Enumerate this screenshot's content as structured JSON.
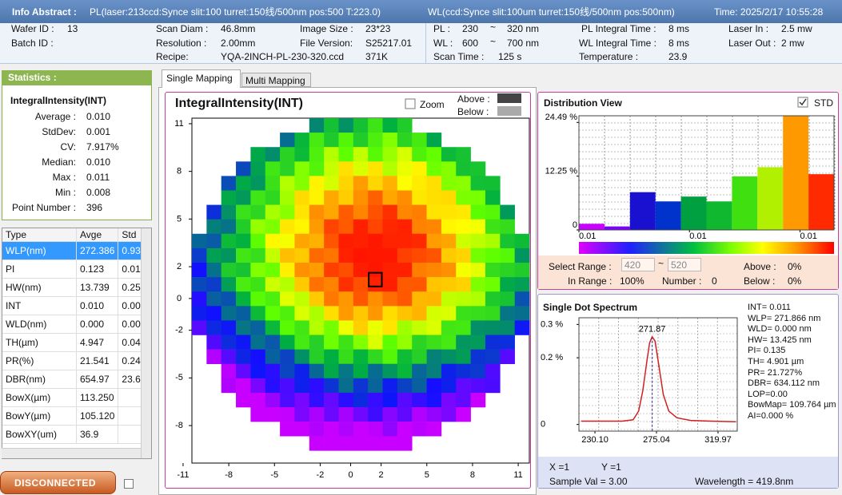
{
  "header": {
    "title": "Info Abstract :",
    "pl": "PL(laser:213ccd:Synce slit:100 turret:150线/500nm pos:500 T:223.0)",
    "wl": "WL(ccd:Synce slit:100um turret:150线/500nm pos:500nm)",
    "time": "Time: 2025/2/17 10:55:28"
  },
  "info": {
    "wafer_id_label": "Wafer ID :",
    "wafer_id": "13",
    "batch_id_label": "Batch ID :",
    "scan_diam_label": "Scan Diam :",
    "scan_diam": "46.8mm",
    "resolution_label": "Resolution :",
    "resolution": "2.00mm",
    "recipe_label": "Recipe:",
    "recipe": "YQA-2INCH-PL-230-320.ccd",
    "image_size_label": "Image Size :",
    "image_size": "23*23",
    "file_version_label": "File Version:",
    "file_version": "S25217.01",
    "file_size": "371K",
    "pl_label": "PL :",
    "pl_from": "230",
    "pl_tilde": "~",
    "pl_to": "320 nm",
    "wl_label": "WL :",
    "wl_from": "600",
    "wl_tilde": "~",
    "wl_to": "700 nm",
    "scan_time_label": "Scan Time :",
    "scan_time": "125 s",
    "pl_int_label": "PL Integral Time :",
    "pl_int": "8 ms",
    "wl_int_label": "WL Integral Time :",
    "wl_int": "8 ms",
    "temp_label": "Temperature :",
    "temp": "23.9",
    "laser_in_label": "Laser In :",
    "laser_in": "2.5 mw",
    "laser_out_label": "Laser Out :",
    "laser_out": "2 mw"
  },
  "statistics": {
    "title": "Statistics :",
    "metric": "IntegralIntensity(INT)",
    "rows": [
      {
        "label": "Average :",
        "value": "0.010"
      },
      {
        "label": "StdDev:",
        "value": "0.001"
      },
      {
        "label": "CV:",
        "value": "7.917%"
      },
      {
        "label": "Median:",
        "value": "0.010"
      },
      {
        "label": "Max :",
        "value": "0.011"
      },
      {
        "label": "Min :",
        "value": "0.008"
      },
      {
        "label": "Point Number :",
        "value": "396"
      }
    ]
  },
  "table": {
    "columns": [
      "Type",
      "Avge",
      "Std"
    ],
    "rows": [
      [
        "WLP(nm)",
        "272.386",
        "0.93"
      ],
      [
        "PI",
        "0.123",
        "0.01"
      ],
      [
        "HW(nm)",
        "13.739",
        "0.25"
      ],
      [
        "INT",
        "0.010",
        "0.00"
      ],
      [
        "WLD(nm)",
        "0.000",
        "0.00"
      ],
      [
        "TH(µm)",
        "4.947",
        "0.04"
      ],
      [
        "PR(%)",
        "21.541",
        "0.24"
      ],
      [
        "DBR(nm)",
        "654.97",
        "23.6"
      ],
      [
        "BowX(µm)",
        "113.250"
      ],
      [
        "BowY(µm)",
        "105.120"
      ],
      [
        "BowXY(um)",
        "36.9"
      ]
    ]
  },
  "status": {
    "button": "DISCONNECTED"
  },
  "tabs": [
    "Single Mapping",
    "Multi Mapping"
  ],
  "map": {
    "title": "IntegralIntensity(INT)",
    "zoom": "Zoom",
    "above": "Above :",
    "below": "Below :",
    "xlim": [
      -10.42,
      11.73
    ],
    "ylim": [
      -10.36,
      11.35
    ],
    "xticks": [
      -11,
      -8,
      -5,
      -2,
      0,
      2,
      5,
      8,
      11
    ],
    "yticks": [
      11,
      8,
      5,
      2,
      0,
      -2,
      -5,
      -8
    ]
  },
  "distribution": {
    "type": "histogram",
    "title": "Distribution View",
    "std": "STD",
    "bins": [
      0.008,
      0.0083,
      0.0086,
      0.0089,
      0.0092,
      0.0095,
      0.0098,
      0.0101,
      0.0104,
      0.0107,
      0.011
    ],
    "values": [
      1.4,
      0.8,
      8.6,
      6.5,
      7.6,
      6.5,
      12.2,
      14.3,
      26,
      12.7
    ],
    "colors": [
      "#c800ff",
      "#7a00ff",
      "#1a10d0",
      "#0033cc",
      "#00a040",
      "#10b830",
      "#40e010",
      "#b0f000",
      "#ff9900",
      "#ff2a00"
    ],
    "xlim": [
      0.008,
      0.011
    ],
    "xticks": [
      {
        "value": 0.008,
        "label": "0.01"
      },
      {
        "value": 0.0093,
        "label": "0.01"
      },
      {
        "value": 0.0106,
        "label": "0.01"
      }
    ],
    "ylim": [
      0,
      26
    ],
    "yticks": [
      {
        "value": 24.49,
        "label": "24.49 %"
      },
      {
        "value": 12.25,
        "label": "12.25 %"
      },
      0
    ],
    "range": {
      "label": "Select Range :",
      "from": "420",
      "tilde": "~",
      "to": "520",
      "above_label": "Above :",
      "above": "0%",
      "in_label": "In Range :",
      "in": "100%",
      "number_label": "Number :",
      "number": "0",
      "below_label": "Below :",
      "below": "0%"
    }
  },
  "spectrum": {
    "type": "line",
    "title": "Single Dot Spectrum",
    "color": "#d02020",
    "peak_label": "271.87",
    "x": [
      220,
      235,
      250,
      258,
      262,
      265,
      268,
      270,
      271.87,
      274,
      277,
      280,
      284,
      290,
      300,
      315,
      333
    ],
    "values": [
      0.01,
      0.01,
      0.01,
      0.014,
      0.04,
      0.1,
      0.19,
      0.245,
      0.263,
      0.25,
      0.17,
      0.09,
      0.04,
      0.02,
      0.012,
      0.01,
      0.008
    ],
    "xlim": [
      218.4,
      334
    ],
    "ylim": [
      -0.02,
      0.32
    ],
    "xticks": [
      {
        "value": 230.1,
        "label": "230.10"
      },
      275.04,
      319.97
    ],
    "yticks": [
      {
        "value": 0.3,
        "label": "0.3 %"
      },
      {
        "value": 0.2,
        "label": "0.2 %"
      },
      0
    ],
    "info": [
      "INT= 0.011",
      "WLP= 271.866 nm",
      "WLD= 0.000 nm",
      "HW= 13.425 nm",
      "PI= 0.135",
      "TH= 4.901 µm",
      "PR= 21.727%",
      "DBR= 634.112 nm",
      "LOP=0.00",
      "BowMap= 109.764 µm",
      "AI=0.000 %"
    ],
    "footer": {
      "x": "X =1",
      "y": "Y =1",
      "sample": "Sample Val = 3.00",
      "wavelength": "Wavelength = 419.8nm"
    }
  }
}
